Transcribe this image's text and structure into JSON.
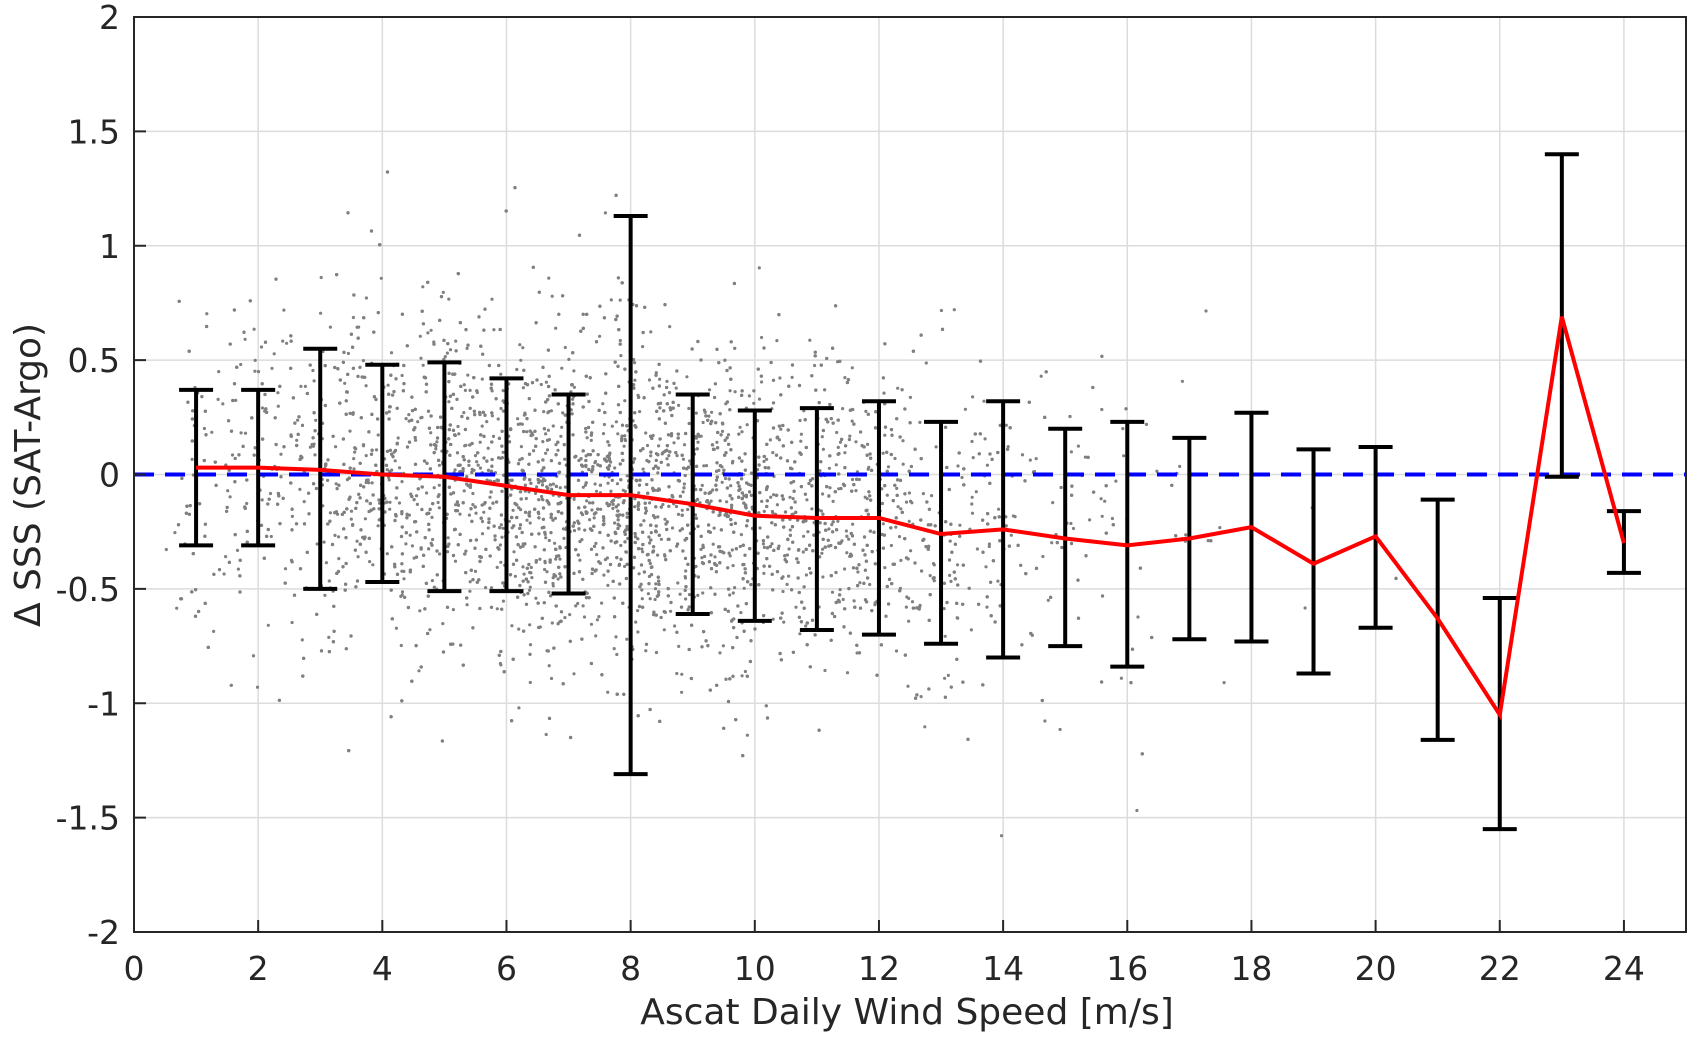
{
  "chart_data": {
    "type": "scatter",
    "title": "",
    "xlabel": "Ascat Daily Wind Speed [m/s]",
    "ylabel": "Δ SSS (SAT-Argo)",
    "xlim": [
      0,
      25
    ],
    "ylim": [
      -2,
      2
    ],
    "xticks": [
      0,
      2,
      4,
      6,
      8,
      10,
      12,
      14,
      16,
      18,
      20,
      22,
      24
    ],
    "yticks": [
      -2,
      -1.5,
      -1,
      -0.5,
      0,
      0.5,
      1,
      1.5,
      2
    ],
    "xtick_labels": [
      "0",
      "2",
      "4",
      "6",
      "8",
      "10",
      "12",
      "14",
      "16",
      "18",
      "20",
      "22",
      "24"
    ],
    "ytick_labels": [
      "-2",
      "-1.5",
      "-1",
      "-0.5",
      "0",
      "0.5",
      "1",
      "1.5",
      "2"
    ],
    "grid": true,
    "reference_line": {
      "y": 0,
      "style": "dashed",
      "color": "#0000ff"
    },
    "scatter": {
      "color": "#808080",
      "x_range": [
        0.5,
        24.5
      ],
      "y_range": [
        -2,
        2
      ],
      "approx_count": 6000
    },
    "binned": {
      "color_mean": "#ff0000",
      "color_errorbar": "#000000",
      "x": [
        1,
        2,
        3,
        4,
        5,
        6,
        7,
        8,
        9,
        10,
        11,
        12,
        13,
        14,
        15,
        16,
        17,
        18,
        19,
        20,
        21,
        22,
        23,
        24
      ],
      "mean": [
        0.03,
        0.03,
        0.02,
        0.0,
        -0.01,
        -0.05,
        -0.09,
        -0.09,
        -0.13,
        -0.18,
        -0.19,
        -0.19,
        -0.26,
        -0.24,
        -0.28,
        -0.31,
        -0.28,
        -0.23,
        -0.39,
        -0.27,
        -0.63,
        -1.05,
        0.69,
        -0.3
      ],
      "upper": [
        0.37,
        0.37,
        0.55,
        0.48,
        0.49,
        0.42,
        0.35,
        1.13,
        0.35,
        0.28,
        0.29,
        0.32,
        0.23,
        0.32,
        0.2,
        0.23,
        0.16,
        0.27,
        0.11,
        0.12,
        -0.11,
        -0.54,
        1.4,
        -0.16
      ],
      "lower": [
        -0.31,
        -0.31,
        -0.5,
        -0.47,
        -0.51,
        -0.51,
        -0.52,
        -1.31,
        -0.61,
        -0.64,
        -0.68,
        -0.7,
        -0.74,
        -0.8,
        -0.75,
        -0.84,
        -0.72,
        -0.73,
        -0.87,
        -0.67,
        -1.16,
        -1.55,
        -0.01,
        -0.43
      ]
    }
  }
}
